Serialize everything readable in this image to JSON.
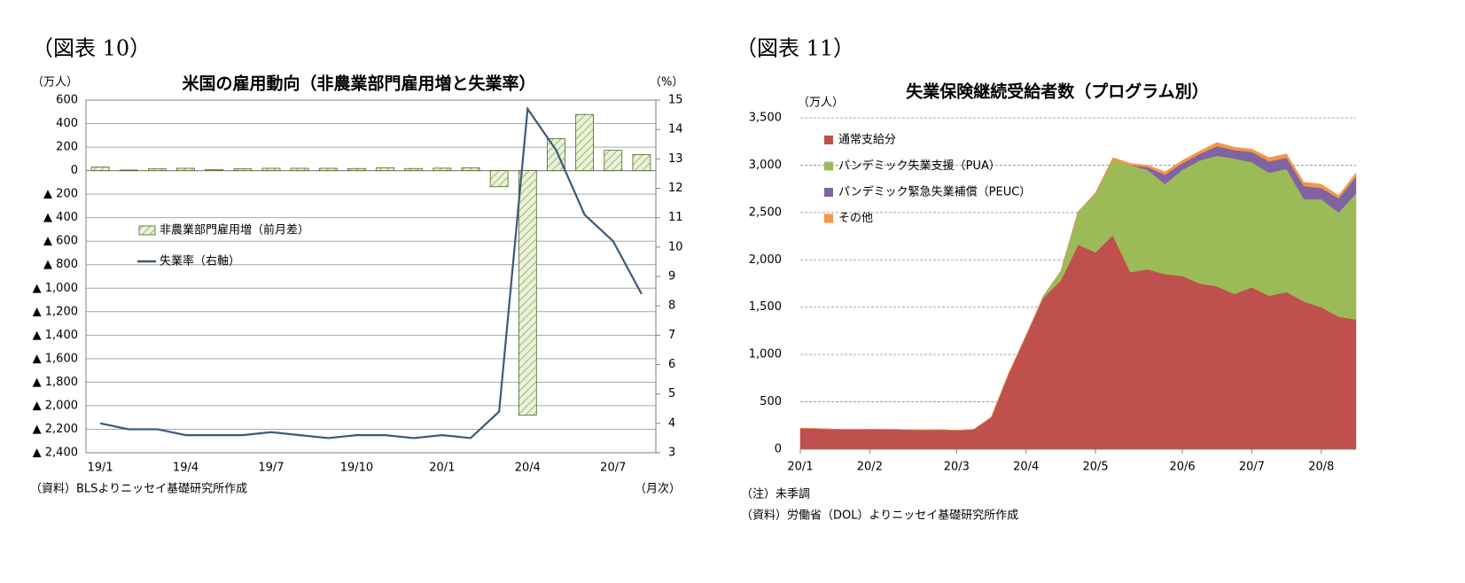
{
  "chart_data": [
    {
      "type": "bar",
      "figure_label": "（図表 10）",
      "title": "米国の雇用動向（非農業部門雇用増と失業率）",
      "y_unit": "（万人）",
      "y2_unit": "（%）",
      "x_unit": "（月次）",
      "source": "（資料）BLSよりニッセイ基礎研究所作成",
      "categories": [
        "19/1",
        null,
        null,
        "19/4",
        null,
        null,
        "19/7",
        null,
        null,
        "19/10",
        null,
        null,
        "20/1",
        null,
        null,
        "20/4",
        null,
        null,
        "20/7",
        null
      ],
      "series": [
        {
          "name": "非農業部門雇用増（前月差）",
          "type": "bar",
          "color": "#d7e4bd",
          "edge": "#4f6228",
          "values": [
            31,
            5,
            15,
            20,
            8,
            15,
            20,
            20,
            20,
            18,
            25,
            18,
            21,
            25,
            -137,
            -2079,
            272,
            478,
            173,
            137
          ]
        },
        {
          "name": "失業率（右軸）",
          "type": "line",
          "axis": "y2",
          "color": "#3b5a7c",
          "values": [
            4.0,
            3.8,
            3.8,
            3.6,
            3.6,
            3.6,
            3.7,
            3.6,
            3.5,
            3.6,
            3.6,
            3.5,
            3.6,
            3.5,
            4.4,
            14.7,
            13.3,
            11.1,
            10.2,
            8.4
          ]
        }
      ],
      "ylim": [
        -2400,
        600
      ],
      "yticks": [
        {
          "value": -2400,
          "label": "▲ 2,400"
        },
        {
          "value": -2200,
          "label": "▲ 2,200"
        },
        {
          "value": -2000,
          "label": "▲ 2,000"
        },
        {
          "value": -1800,
          "label": "▲ 1,800"
        },
        {
          "value": -1600,
          "label": "▲ 1,600"
        },
        {
          "value": -1400,
          "label": "▲ 1,400"
        },
        {
          "value": -1200,
          "label": "▲ 1,200"
        },
        {
          "value": -1000,
          "label": "▲ 1,000"
        },
        {
          "value": -800,
          "label": "▲ 800"
        },
        {
          "value": -600,
          "label": "▲ 600"
        },
        {
          "value": -400,
          "label": "▲ 400"
        },
        {
          "value": -200,
          "label": "▲ 200"
        },
        0,
        200,
        400,
        600
      ],
      "y2lim": [
        3,
        15
      ],
      "y2ticks": [
        3,
        4,
        5,
        6,
        7,
        8,
        9,
        10,
        11,
        12,
        13,
        14,
        15
      ],
      "grid": true
    },
    {
      "type": "area",
      "stacked": true,
      "figure_label": "（図表 11）",
      "title": "失業保険継続受給者数（プログラム別）",
      "y_unit": "（万人）",
      "note": "（注）未季調",
      "source": "（資料）労働省（DOL）よりニッセイ基礎研究所作成",
      "categories": [
        "20/1",
        null,
        null,
        null,
        "20/2",
        null,
        null,
        null,
        null,
        "20/3",
        null,
        null,
        null,
        "20/4",
        null,
        null,
        null,
        "20/5",
        null,
        null,
        null,
        null,
        "20/6",
        null,
        null,
        null,
        "20/7",
        null,
        null,
        null,
        "20/8",
        null,
        null
      ],
      "series": [
        {
          "name": "通常支給分",
          "color": "#c0504d",
          "values": [
            222,
            218,
            212,
            210,
            212,
            210,
            208,
            204,
            207,
            200,
            210,
            340,
            800,
            1200,
            1600,
            1780,
            2160,
            2080,
            2260,
            1870,
            1900,
            1850,
            1830,
            1750,
            1720,
            1640,
            1710,
            1620,
            1660,
            1560,
            1500,
            1400,
            1370
          ]
        },
        {
          "name": "パンデミック失業支援（PUA）",
          "color": "#9bbb59",
          "values": [
            0,
            0,
            0,
            0,
            0,
            0,
            0,
            0,
            0,
            0,
            0,
            0,
            0,
            0,
            20,
            100,
            350,
            620,
            800,
            1130,
            1050,
            950,
            1120,
            1300,
            1380,
            1430,
            1320,
            1300,
            1300,
            1080,
            1140,
            1100,
            1330
          ]
        },
        {
          "name": "パンデミック緊急失業補償（PEUC）",
          "color": "#8064a2",
          "values": [
            0,
            0,
            0,
            0,
            0,
            0,
            0,
            0,
            0,
            0,
            0,
            0,
            0,
            0,
            0,
            0,
            0,
            0,
            0,
            0,
            30,
            100,
            70,
            70,
            100,
            90,
            110,
            120,
            120,
            140,
            120,
            150,
            180
          ]
        },
        {
          "name": "その他",
          "color": "#f79646",
          "values": [
            0,
            0,
            0,
            0,
            0,
            0,
            0,
            0,
            0,
            0,
            0,
            0,
            0,
            0,
            0,
            0,
            0,
            10,
            20,
            20,
            20,
            30,
            30,
            30,
            40,
            30,
            30,
            40,
            40,
            40,
            40,
            30,
            40
          ]
        }
      ],
      "ylim": [
        0,
        3500
      ],
      "yticks": [
        0,
        500,
        {
          "value": 1000,
          "label": "1,000"
        },
        {
          "value": 1500,
          "label": "1,500"
        },
        {
          "value": 2000,
          "label": "2,000"
        },
        {
          "value": 2500,
          "label": "2,500"
        },
        {
          "value": 3000,
          "label": "3,000"
        },
        {
          "value": 3500,
          "label": "3,500"
        }
      ],
      "grid": true
    }
  ]
}
